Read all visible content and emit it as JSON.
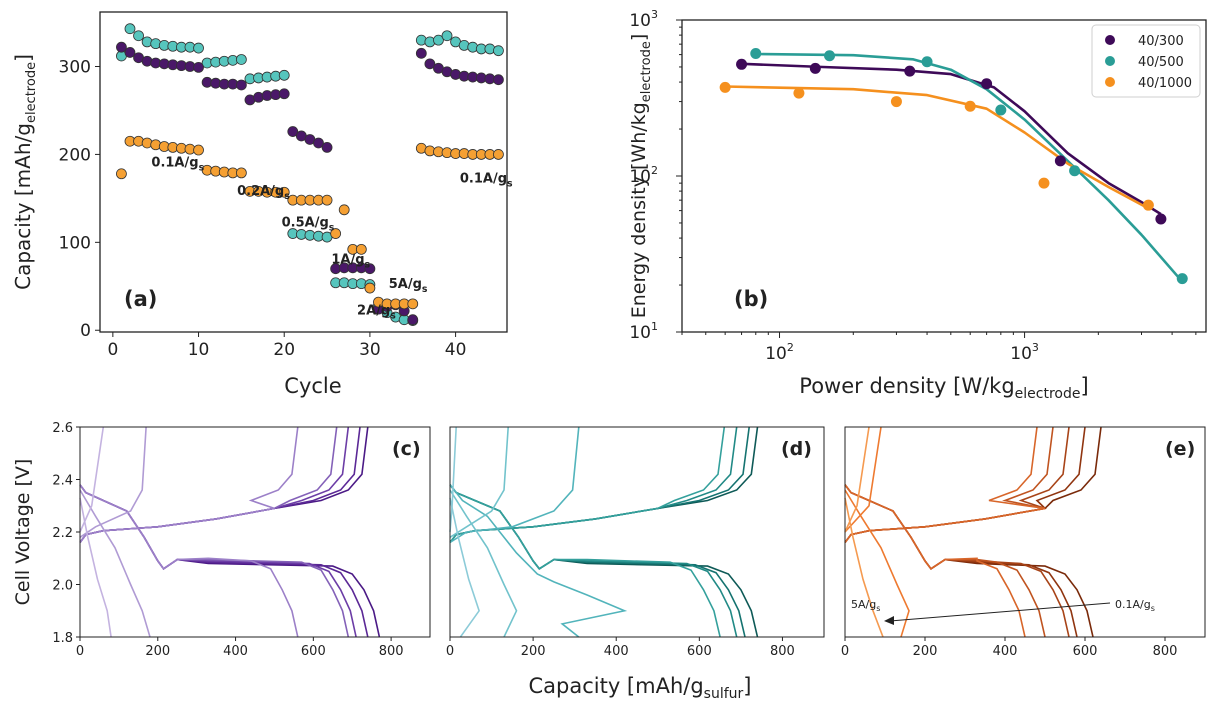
{
  "chart_data": [
    {
      "id": "a",
      "type": "scatter",
      "panel_label": "(a)",
      "xlabel": "Cycle",
      "ylabel_main": "Capacity [mAh/g",
      "ylabel_sub": "electrode",
      "ylabel_end": "]",
      "xlim": [
        -1.5,
        46
      ],
      "ylim": [
        -2,
        362
      ],
      "xticks": [
        0,
        10,
        20,
        30,
        40
      ],
      "yticks": [
        0,
        100,
        200,
        300
      ],
      "rate_labels": [
        {
          "main": "0.1A/g",
          "sub": "s",
          "x": 4.5,
          "y": 186
        },
        {
          "main": "0.2A/g",
          "sub": "s",
          "x": 14.5,
          "y": 154
        },
        {
          "main": "0.5A/g",
          "sub": "s",
          "x": 19.7,
          "y": 118
        },
        {
          "main": "1A/g",
          "sub": "s",
          "x": 25.5,
          "y": 76
        },
        {
          "main": "5A/g",
          "sub": "s",
          "x": 32.2,
          "y": 48
        },
        {
          "main": "2A/g",
          "sub": "s",
          "x": 28.5,
          "y": 18
        },
        {
          "main": "0.1A/g",
          "sub": "s",
          "x": 40.5,
          "y": 168
        }
      ],
      "series": [
        {
          "color": "#56c5bd",
          "x": [
            1,
            2,
            3,
            4,
            5,
            6,
            7,
            8,
            9,
            10,
            11,
            12,
            13,
            14,
            15,
            16,
            17,
            18,
            19,
            20,
            21,
            22,
            23,
            24,
            25,
            26,
            27,
            28,
            29,
            30,
            31,
            32,
            33,
            34,
            35,
            36,
            37,
            38,
            39,
            40,
            41,
            42,
            43,
            44,
            45
          ],
          "y": [
            312,
            343,
            335,
            328,
            326,
            324,
            323,
            322,
            322,
            321,
            304,
            305,
            306,
            307,
            308,
            286,
            287,
            288,
            289,
            290,
            110,
            109,
            108,
            107,
            106,
            54,
            54,
            53,
            53,
            52,
            28,
            20,
            15,
            12,
            11,
            330,
            328,
            330,
            335,
            328,
            324,
            322,
            320,
            320,
            318
          ]
        },
        {
          "color": "#4a1868",
          "x": [
            1,
            2,
            3,
            4,
            5,
            6,
            7,
            8,
            9,
            10,
            11,
            12,
            13,
            14,
            15,
            16,
            17,
            18,
            19,
            20,
            21,
            22,
            23,
            24,
            25,
            26,
            27,
            28,
            29,
            30,
            31,
            32,
            33,
            34,
            35,
            36,
            37,
            38,
            39,
            40,
            41,
            42,
            43,
            44,
            45
          ],
          "y": [
            322,
            316,
            310,
            306,
            304,
            303,
            302,
            301,
            300,
            299,
            282,
            281,
            280,
            280,
            279,
            262,
            265,
            267,
            268,
            269,
            226,
            221,
            217,
            213,
            208,
            70,
            71,
            71,
            71,
            70,
            24,
            27,
            29,
            22,
            12,
            315,
            303,
            298,
            294,
            291,
            289,
            288,
            287,
            286,
            285
          ]
        },
        {
          "color": "#f5a033",
          "x": [
            1,
            2,
            3,
            4,
            5,
            6,
            7,
            8,
            9,
            10,
            11,
            12,
            13,
            14,
            15,
            16,
            17,
            18,
            19,
            20,
            21,
            22,
            23,
            24,
            25,
            26,
            27,
            28,
            29,
            30,
            31,
            32,
            33,
            34,
            35,
            36,
            37,
            38,
            39,
            40,
            41,
            42,
            43,
            44,
            45
          ],
          "y": [
            178,
            215,
            215,
            213,
            211,
            209,
            208,
            207,
            206,
            205,
            182,
            181,
            180,
            179,
            179,
            158,
            158,
            157,
            157,
            157,
            148,
            148,
            148,
            148,
            148,
            110,
            137,
            92,
            92,
            48,
            32,
            30,
            30,
            30,
            30,
            207,
            204,
            203,
            202,
            201,
            201,
            200,
            200,
            200,
            200
          ]
        }
      ]
    },
    {
      "id": "b",
      "type": "scatter",
      "panel_label": "(b)",
      "xscale": "log",
      "yscale": "log",
      "xlabel_main": "Power density [W/kg",
      "xlabel_sub": "electrode",
      "xlabel_end": "]",
      "ylabel_main": "Energy density [Wh/kg",
      "ylabel_sub": "electrode",
      "ylabel_end": "]",
      "xlim": [
        40,
        5500
      ],
      "ylim": [
        10,
        1000
      ],
      "xticks": [
        {
          "base": "10",
          "exp": "2",
          "value": 100
        },
        {
          "base": "10",
          "exp": "3",
          "value": 1000
        }
      ],
      "yticks": [
        {
          "base": "10",
          "exp": "1",
          "value": 10
        },
        {
          "base": "10",
          "exp": "2",
          "value": 100
        },
        {
          "base": "10",
          "exp": "3",
          "value": 1000
        }
      ],
      "legend_position": "top-right",
      "series": [
        {
          "name": "40/300",
          "color": "#3e0a58",
          "points": [
            [
              70,
              520
            ],
            [
              140,
              490
            ],
            [
              340,
              470
            ],
            [
              700,
              390
            ],
            [
              1400,
              125
            ],
            [
              3600,
              53
            ]
          ],
          "fit": [
            [
              68,
              525
            ],
            [
              150,
              500
            ],
            [
              300,
              480
            ],
            [
              500,
              450
            ],
            [
              750,
              370
            ],
            [
              1000,
              260
            ],
            [
              1500,
              140
            ],
            [
              2200,
              90
            ],
            [
              3000,
              68
            ],
            [
              3600,
              57
            ]
          ]
        },
        {
          "name": "40/500",
          "color": "#2a9d96",
          "points": [
            [
              80,
              610
            ],
            [
              160,
              590
            ],
            [
              400,
              540
            ],
            [
              800,
              265
            ],
            [
              1600,
              108
            ],
            [
              4400,
              22
            ]
          ],
          "fit": [
            [
              78,
              605
            ],
            [
              200,
              595
            ],
            [
              350,
              560
            ],
            [
              500,
              480
            ],
            [
              700,
              360
            ],
            [
              1000,
              230
            ],
            [
              1500,
              125
            ],
            [
              2200,
              70
            ],
            [
              3000,
              42
            ],
            [
              4400,
              21
            ]
          ]
        },
        {
          "name": "40/1000",
          "color": "#f5901e",
          "points": [
            [
              60,
              370
            ],
            [
              120,
              340
            ],
            [
              300,
              300
            ],
            [
              600,
              280
            ],
            [
              1200,
              90
            ],
            [
              3200,
              65
            ]
          ],
          "fit": [
            [
              60,
              375
            ],
            [
              200,
              360
            ],
            [
              400,
              330
            ],
            [
              700,
              270
            ],
            [
              1000,
              190
            ],
            [
              1500,
              120
            ],
            [
              2200,
              85
            ],
            [
              3200,
              62
            ]
          ]
        }
      ]
    },
    {
      "id": "c",
      "type": "line",
      "panel_label": "(c)",
      "ylabel": "Cell Voltage [V]",
      "xlim": [
        0,
        900
      ],
      "ylim": [
        1.8,
        2.6
      ],
      "xticks": [
        0,
        200,
        400,
        600,
        800
      ],
      "yticks": [
        "1.8",
        "2.0",
        "2.2",
        "2.4",
        "2.6"
      ],
      "discharge_caps": [
        770,
        740,
        710,
        690,
        560,
        180,
        80
      ],
      "charge_caps": [
        740,
        720,
        690,
        660,
        560,
        170,
        60
      ],
      "colors": [
        "#4b1a86",
        "#5b2896",
        "#6c3da6",
        "#8461b8",
        "#9c80c8",
        "#b09bd4",
        "#c4b3e0"
      ]
    },
    {
      "id": "d",
      "type": "line",
      "panel_label": "(d)",
      "xlim": [
        0,
        900
      ],
      "ylim": [
        1.8,
        2.6
      ],
      "xticks": [
        0,
        200,
        400,
        600,
        800
      ],
      "discharge_caps": [
        740,
        710,
        690,
        650,
        310,
        130,
        25
      ],
      "charge_caps": [
        740,
        720,
        690,
        660,
        310,
        140,
        15
      ],
      "colors": [
        "#0e5a57",
        "#157370",
        "#218a86",
        "#34a09c",
        "#52b4bb",
        "#72c3cc",
        "#8ccbd8"
      ]
    },
    {
      "id": "e",
      "type": "line",
      "panel_label": "(e)",
      "xlim": [
        0,
        900
      ],
      "ylim": [
        1.8,
        2.6
      ],
      "xticks": [
        0,
        200,
        400,
        600,
        800
      ],
      "discharge_caps": [
        620,
        580,
        560,
        500,
        450,
        140,
        95
      ],
      "charge_caps": [
        640,
        600,
        560,
        520,
        480,
        90,
        60
      ],
      "colors": [
        "#7a2a0a",
        "#903510",
        "#a84418",
        "#c05420",
        "#d8662a",
        "#ee7a30",
        "#f59a50"
      ],
      "annotations": [
        {
          "main": "5A/g",
          "sub": "s"
        },
        {
          "main": "0.1A/g",
          "sub": "s"
        }
      ]
    }
  ],
  "shared_xlabel_main": "Capacity [mAh/g",
  "shared_xlabel_sub": "sulfur",
  "shared_xlabel_end": "]"
}
